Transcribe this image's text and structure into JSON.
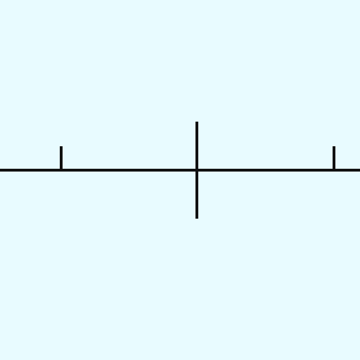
{
  "scene": {
    "background_color": "#e8fbff",
    "line_color": "#111111",
    "elements": [
      {
        "kind": "horizontal-axis-line"
      },
      {
        "kind": "left-tick"
      },
      {
        "kind": "center-cross-marker"
      },
      {
        "kind": "right-tick"
      }
    ]
  }
}
